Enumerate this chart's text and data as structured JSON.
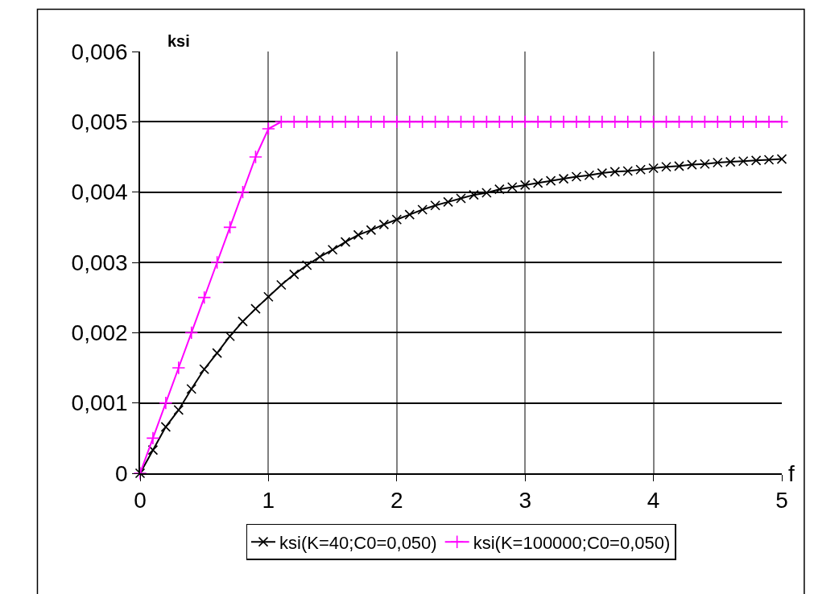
{
  "chart_data": {
    "type": "line",
    "xlabel": "f",
    "ylabel": "ksi",
    "x": [
      0,
      0.1,
      0.2,
      0.3,
      0.4,
      0.5,
      0.6,
      0.7,
      0.8,
      0.9,
      1.0,
      1.1,
      1.2,
      1.3,
      1.4,
      1.5,
      1.6,
      1.7,
      1.8,
      1.9,
      2.0,
      2.1,
      2.2,
      2.3,
      2.4,
      2.5,
      2.6,
      2.7,
      2.8,
      2.9,
      3.0,
      3.1,
      3.2,
      3.3,
      3.4,
      3.5,
      3.6,
      3.7,
      3.8,
      3.9,
      4.0,
      4.1,
      4.2,
      4.3,
      4.4,
      4.5,
      4.6,
      4.7,
      4.8,
      4.9,
      5.0
    ],
    "series": [
      {
        "name": "ksi(K=40;C0=0,050)",
        "color": "#000000",
        "marker": "x",
        "values": [
          0,
          0.00033,
          0.00066,
          0.0009,
          0.0012,
          0.00148,
          0.00171,
          0.00195,
          0.00216,
          0.00234,
          0.00251,
          0.00268,
          0.00283,
          0.00296,
          0.00308,
          0.00318,
          0.00329,
          0.00339,
          0.00346,
          0.00354,
          0.00361,
          0.00368,
          0.00375,
          0.00381,
          0.00386,
          0.00391,
          0.00396,
          0.00399,
          0.00404,
          0.00407,
          0.0041,
          0.00413,
          0.00416,
          0.00419,
          0.00422,
          0.00424,
          0.00427,
          0.00429,
          0.0043,
          0.00432,
          0.00434,
          0.00436,
          0.00437,
          0.00439,
          0.0044,
          0.00442,
          0.00443,
          0.00444,
          0.00445,
          0.00446,
          0.00447
        ]
      },
      {
        "name": "ksi(K=100000;C0=0,050)",
        "color": "#ff00ff",
        "marker": "cross",
        "values": [
          0,
          0.0005,
          0.001,
          0.0015,
          0.002,
          0.0025,
          0.003,
          0.0035,
          0.004,
          0.0045,
          0.0049,
          0.005,
          0.005,
          0.005,
          0.005,
          0.005,
          0.005,
          0.005,
          0.005,
          0.005,
          0.005,
          0.005,
          0.005,
          0.005,
          0.005,
          0.005,
          0.005,
          0.005,
          0.005,
          0.005,
          0.005,
          0.005,
          0.005,
          0.005,
          0.005,
          0.005,
          0.005,
          0.005,
          0.005,
          0.005,
          0.005,
          0.005,
          0.005,
          0.005,
          0.005,
          0.005,
          0.005,
          0.005,
          0.005,
          0.005,
          0.005
        ]
      }
    ],
    "xlim": [
      0,
      5
    ],
    "xticks": [
      0,
      1,
      2,
      3,
      4,
      5
    ],
    "ylim": [
      0,
      0.006
    ],
    "yticks": [
      0,
      {
        "value": 0.001,
        "label": "0,001"
      },
      {
        "value": 0.002,
        "label": "0,002"
      },
      {
        "value": 0.003,
        "label": "0,003"
      },
      {
        "value": 0.004,
        "label": "0,004"
      },
      {
        "value": 0.005,
        "label": "0,005"
      },
      {
        "value": 0.006,
        "label": "0,006"
      }
    ],
    "grid": true,
    "legend": "bottom",
    "line_style": "solid"
  }
}
